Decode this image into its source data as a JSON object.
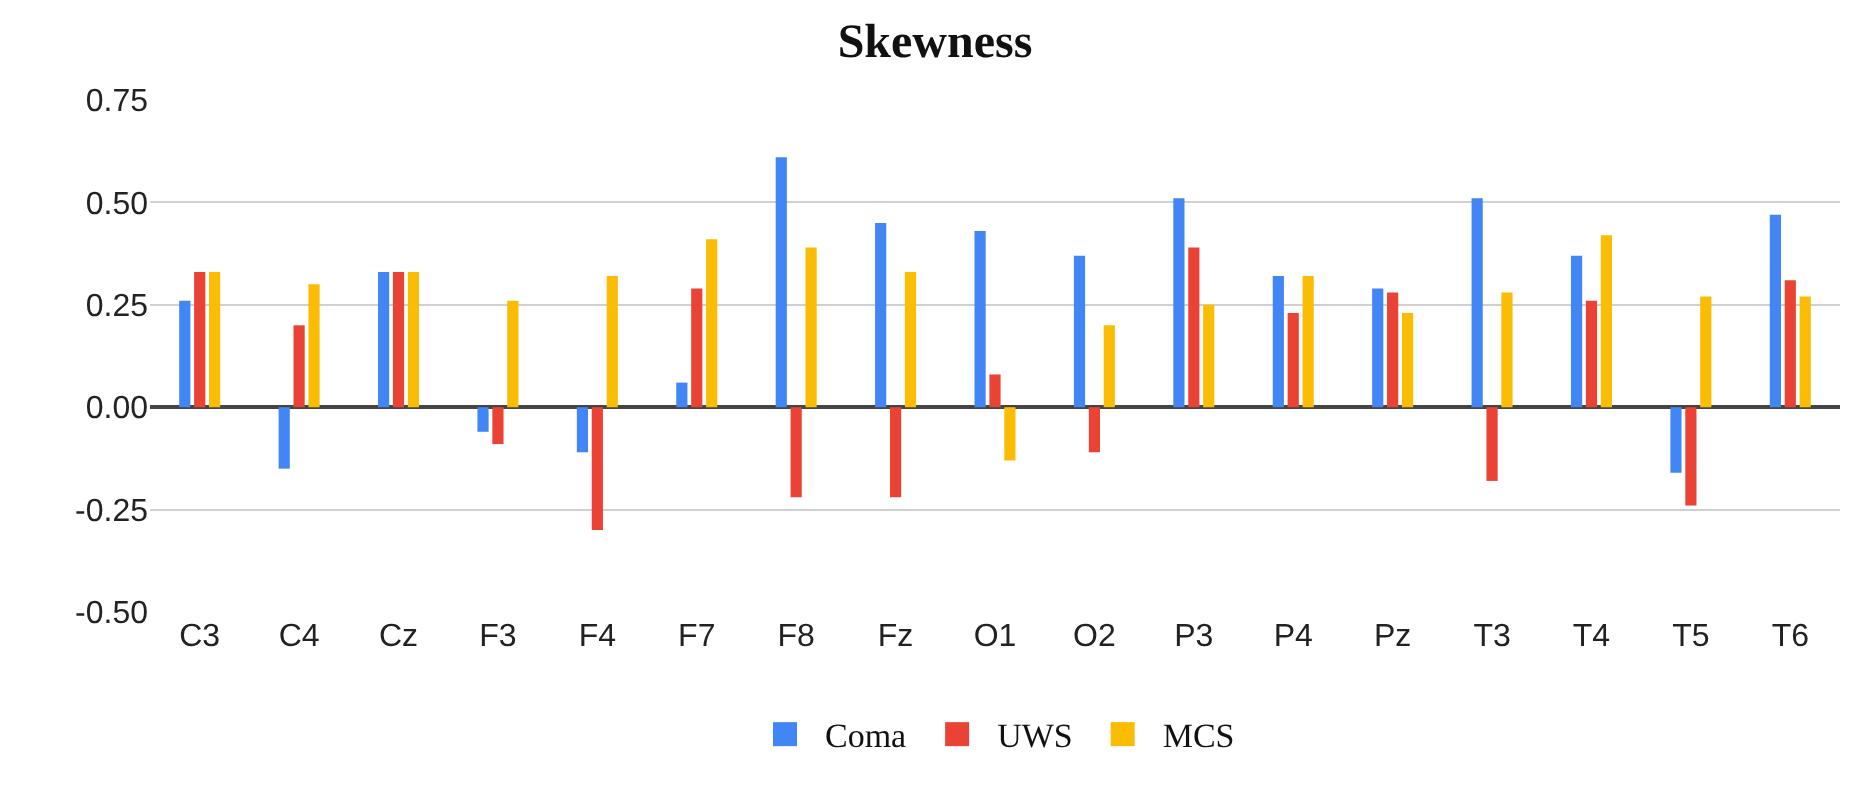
{
  "chart_data": {
    "type": "bar",
    "title": "Skewness",
    "categories": [
      "C3",
      "C4",
      "Cz",
      "F3",
      "F4",
      "F7",
      "F8",
      "Fz",
      "O1",
      "O2",
      "P3",
      "P4",
      "Pz",
      "T3",
      "T4",
      "T5",
      "T6"
    ],
    "series": [
      {
        "name": "Coma",
        "color": "#4285f4",
        "values": [
          0.26,
          -0.15,
          0.33,
          -0.06,
          -0.11,
          0.06,
          0.61,
          0.45,
          0.43,
          0.37,
          0.51,
          0.32,
          0.29,
          0.51,
          0.37,
          -0.16,
          0.47
        ]
      },
      {
        "name": "UWS",
        "color": "#ea4335",
        "values": [
          0.33,
          0.2,
          0.33,
          -0.09,
          -0.3,
          0.29,
          -0.22,
          -0.22,
          0.08,
          -0.11,
          0.39,
          0.23,
          0.28,
          -0.18,
          0.26,
          -0.24,
          0.31
        ]
      },
      {
        "name": "MCS",
        "color": "#fbbc04",
        "values": [
          0.33,
          0.3,
          0.33,
          0.26,
          0.32,
          0.41,
          0.39,
          0.33,
          -0.13,
          0.2,
          0.25,
          0.32,
          0.23,
          0.28,
          0.42,
          0.27,
          0.27
        ]
      }
    ],
    "ylim": [
      -0.5,
      0.75
    ],
    "yticks": [
      {
        "value": -0.5,
        "label": "-0.50"
      },
      {
        "value": -0.25,
        "label": "-0.25"
      },
      {
        "value": 0,
        "label": "0.00"
      },
      {
        "value": 0.25,
        "label": "0.25"
      },
      {
        "value": 0.5,
        "label": "0.50"
      },
      {
        "value": 0.75,
        "label": "0.75"
      }
    ],
    "grid": "y",
    "legend": "bottom"
  }
}
